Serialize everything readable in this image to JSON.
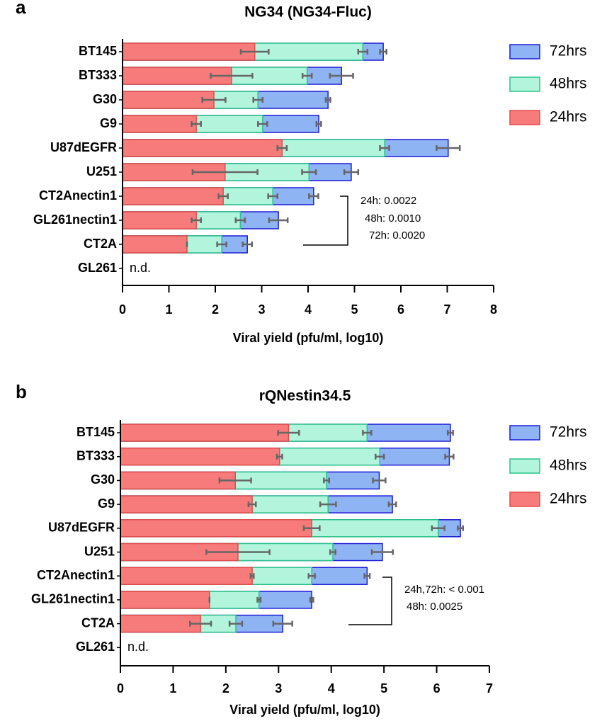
{
  "chart_data": [
    {
      "type": "bar",
      "panel_label": "a",
      "title": "NG34 (NG34-Fluc)",
      "xlabel": "Viral yield (pfu/ml, log10)",
      "categories": [
        "BT145",
        "BT333",
        "G30",
        "G9",
        "U87dEGFR",
        "U251",
        "CT2Anectin1",
        "GL261nectin1",
        "CT2A",
        "GL261"
      ],
      "series": [
        {
          "name": "72hrs",
          "color": "#8fb4f4",
          "edge": "#1b1bd6",
          "values": [
            5.62,
            4.72,
            4.43,
            4.23,
            7.02,
            4.93,
            4.12,
            3.36,
            2.69,
            null
          ],
          "errors": [
            0.07,
            0.25,
            0.05,
            0.05,
            0.25,
            0.15,
            0.1,
            0.2,
            0.1,
            null
          ]
        },
        {
          "name": "48hrs",
          "color": "#b3f5dc",
          "edge": "#2bc48a",
          "values": [
            5.18,
            3.98,
            2.92,
            3.02,
            5.65,
            4.02,
            3.24,
            2.54,
            2.14,
            null
          ],
          "errors": [
            0.1,
            0.1,
            0.1,
            0.1,
            0.1,
            0.15,
            0.1,
            0.1,
            0.1,
            null
          ]
        },
        {
          "name": "24hrs",
          "color": "#f77b7b",
          "edge": "#e24a4a",
          "values": [
            2.85,
            2.35,
            1.97,
            1.59,
            3.44,
            2.21,
            2.17,
            1.59,
            1.39,
            null
          ],
          "errors": [
            0.3,
            0.45,
            0.25,
            0.1,
            0.1,
            0.7,
            0.1,
            0.1,
            0,
            null
          ]
        }
      ],
      "xlim": [
        0,
        8
      ],
      "xticks": [
        0,
        1,
        2,
        3,
        4,
        5,
        6,
        7,
        8
      ],
      "nd_label": "n.d.",
      "annotations": [
        "24h: 0.0022",
        "48h: 0.0010",
        "72h: 0.0020"
      ]
    },
    {
      "type": "bar",
      "panel_label": "b",
      "title": "rQNestin34.5",
      "xlabel": "Viral yield (pfu/ml, log10)",
      "categories": [
        "BT145",
        "BT333",
        "G30",
        "G9",
        "U87dEGFR",
        "U251",
        "CT2Anectin1",
        "GL261nectin1",
        "CT2A",
        "GL261"
      ],
      "series": [
        {
          "name": "72hrs",
          "color": "#8fb4f4",
          "edge": "#1b1bd6",
          "values": [
            6.26,
            6.24,
            4.91,
            5.16,
            6.45,
            4.97,
            4.68,
            3.63,
            3.08,
            null
          ],
          "errors": [
            0.05,
            0.08,
            0.12,
            0.07,
            0.05,
            0.2,
            0.05,
            0.03,
            0.18,
            null
          ]
        },
        {
          "name": "48hrs",
          "color": "#b3f5dc",
          "edge": "#2bc48a",
          "values": [
            4.68,
            4.92,
            3.91,
            3.94,
            6.03,
            4.03,
            3.63,
            2.63,
            2.19,
            null
          ],
          "errors": [
            0.08,
            0.08,
            0.05,
            0.15,
            0.12,
            0.05,
            0.06,
            0.03,
            0.12,
            null
          ]
        },
        {
          "name": "24hrs",
          "color": "#f77b7b",
          "edge": "#e24a4a",
          "values": [
            3.19,
            3.02,
            2.18,
            2.5,
            3.63,
            2.23,
            2.5,
            1.69,
            1.52,
            null
          ],
          "errors": [
            0.2,
            0.05,
            0.3,
            0.07,
            0.15,
            0.6,
            0.03,
            0,
            0.2,
            null
          ]
        }
      ],
      "xlim": [
        0,
        7
      ],
      "xticks": [
        0,
        1,
        2,
        3,
        4,
        5,
        6,
        7
      ],
      "nd_label": "n.d.",
      "annotations": [
        "24h,72h: < 0.001",
        "48h: 0.0025"
      ]
    }
  ]
}
